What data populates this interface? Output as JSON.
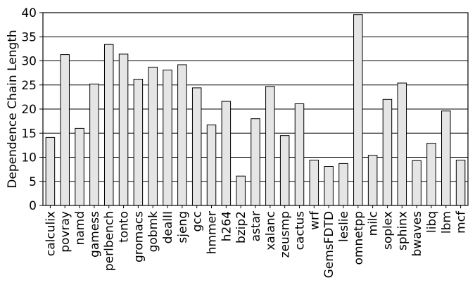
{
  "chart_data": {
    "type": "bar",
    "title": "",
    "xlabel": "",
    "ylabel": "Dependence Chain Length",
    "ylim": [
      0,
      40
    ],
    "yticks": [
      0,
      5,
      10,
      15,
      20,
      25,
      30,
      35,
      40
    ],
    "grid": "horizontal",
    "categories": [
      "calculix",
      "povray",
      "namd",
      "gamess",
      "perlbench",
      "tonto",
      "gromacs",
      "gobmk",
      "dealII",
      "sjeng",
      "gcc",
      "hmmer",
      "h264",
      "bzip2",
      "astar",
      "xalanc",
      "zeusmp",
      "cactus",
      "wrf",
      "GemsFDTD",
      "leslie",
      "omnetpp",
      "milc",
      "soplex",
      "sphinx",
      "bwaves",
      "libq",
      "lbm",
      "mcf"
    ],
    "values": [
      14.1,
      31.3,
      16.0,
      25.2,
      33.4,
      31.4,
      26.2,
      28.7,
      28.1,
      29.2,
      24.4,
      16.7,
      21.6,
      6.1,
      18.0,
      24.7,
      14.5,
      21.1,
      9.4,
      8.1,
      8.7,
      39.6,
      10.4,
      22.0,
      25.4,
      9.3,
      12.9,
      19.6,
      9.4
    ],
    "colors": {
      "bar_fill": "#e5e5e5",
      "bar_stroke": "#000000",
      "grid": "#000000",
      "axis": "#000000"
    }
  }
}
